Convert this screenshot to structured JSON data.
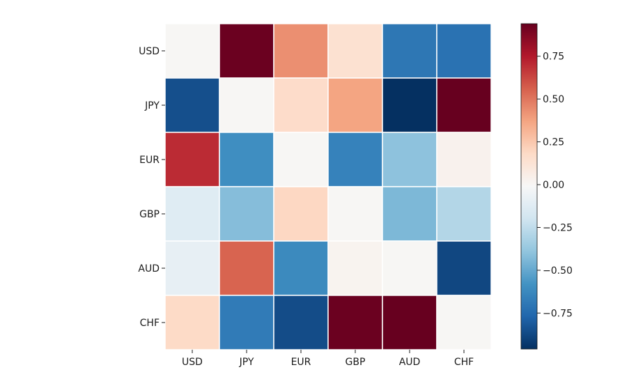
{
  "chart_data": {
    "type": "heatmap",
    "title": "",
    "xlabel": "",
    "ylabel": "",
    "rows": [
      "USD",
      "JPY",
      "EUR",
      "GBP",
      "AUD",
      "CHF"
    ],
    "columns": [
      "USD",
      "JPY",
      "EUR",
      "GBP",
      "AUD",
      "CHF"
    ],
    "values": [
      [
        0.0,
        0.93,
        0.43,
        0.14,
        -0.7,
        -0.72
      ],
      [
        -0.85,
        0.0,
        0.17,
        0.37,
        -0.96,
        0.97
      ],
      [
        0.7,
        -0.6,
        0.0,
        -0.65,
        -0.4,
        0.03
      ],
      [
        -0.13,
        -0.42,
        0.19,
        0.0,
        -0.44,
        -0.29
      ],
      [
        -0.09,
        0.55,
        -0.62,
        0.02,
        0.0,
        -0.88
      ],
      [
        0.18,
        -0.68,
        -0.86,
        0.93,
        0.94,
        0.0
      ]
    ],
    "colorbar": {
      "vmin": -0.96,
      "vmax": 0.94,
      "ticks": [
        -0.75,
        -0.5,
        -0.25,
        0,
        0.25,
        0.5,
        0.75
      ],
      "tick_labels": [
        "−0.75",
        "−0.50",
        "−0.25",
        "0.00",
        "0.25",
        "0.50",
        "0.75"
      ]
    },
    "colormap": "RdBu_r",
    "grid": false,
    "cell_border_color": "#ffffff"
  }
}
